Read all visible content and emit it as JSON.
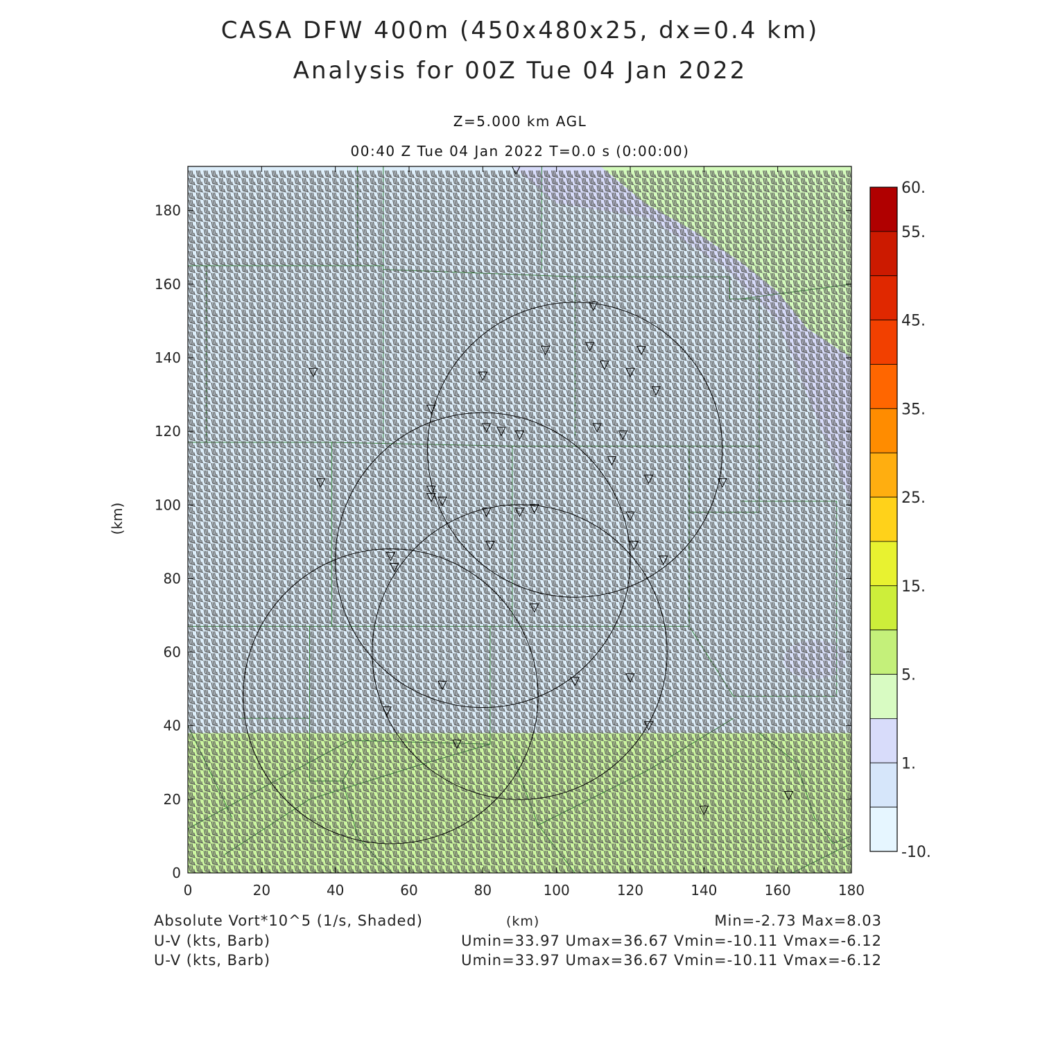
{
  "header": {
    "title_line1": "CASA DFW 400m (450x480x25, dx=0.4 km)",
    "title_line2": "Analysis for 00Z Tue 04 Jan 2022",
    "level": "Z=5.000 km AGL",
    "time": "00:40 Z Tue 04 Jan 2022    T=0.0 s (0:00:00)"
  },
  "axes": {
    "xlabel": "(km)",
    "ylabel": "(km)",
    "xticks": [
      "0",
      "20",
      "40",
      "60",
      "80",
      "100",
      "120",
      "140",
      "160",
      "180"
    ],
    "yticks": [
      "0",
      "20",
      "40",
      "60",
      "80",
      "100",
      "120",
      "140",
      "160",
      "180"
    ],
    "xrange_km": [
      0,
      180
    ],
    "yrange_km": [
      0,
      192
    ]
  },
  "colorbar": {
    "labels": [
      "60.",
      "55.",
      "45.",
      "35.",
      "25.",
      "15.",
      "5.",
      "1.",
      "-10."
    ],
    "colors": [
      "#b00000",
      "#cc1a00",
      "#e02800",
      "#f24000",
      "#ff6600",
      "#ff8c00",
      "#ffae10",
      "#ffd21a",
      "#e8f230",
      "#cdee3a",
      "#c4f07a",
      "#d8fbc2",
      "#d8dcfa",
      "#d6e6fa",
      "#e6f6ff"
    ]
  },
  "footer": {
    "field": "Absolute Vort*10^5 (1/s, Shaded)",
    "units": "(km)",
    "minmax": "Min=-2.73 Max=8.03",
    "barb1_label": "U-V (kts, Barb)",
    "barb1_stats": "Umin=33.97 Umax=36.67 Vmin=-10.11 Vmax=-6.12",
    "barb2_label": "U-V (kts, Barb)",
    "barb2_stats": "Umin=33.97 Umax=36.67 Vmin=-10.11 Vmax=-6.12"
  },
  "map": {
    "shading_colors": {
      "light_blue": "#ddeefa",
      "lavender": "#d8dcfa",
      "light_green": "#d4fbbc",
      "yellow_green": "#ccf6a0"
    },
    "boundary_color": "#2e7d32",
    "radar_circles_km": [
      {
        "cx": 105,
        "cy": 115,
        "r": 40
      },
      {
        "cx": 80,
        "cy": 85,
        "r": 40
      },
      {
        "cx": 90,
        "cy": 60,
        "r": 40
      },
      {
        "cx": 55,
        "cy": 48,
        "r": 40
      }
    ],
    "station_markers_km": [
      [
        89,
        191
      ],
      [
        34,
        136
      ],
      [
        66,
        126
      ],
      [
        80,
        135
      ],
      [
        97,
        142
      ],
      [
        110,
        154
      ],
      [
        109,
        143
      ],
      [
        123,
        142
      ],
      [
        113,
        138
      ],
      [
        120,
        136
      ],
      [
        127,
        131
      ],
      [
        111,
        121
      ],
      [
        81,
        121
      ],
      [
        85,
        120
      ],
      [
        90,
        119
      ],
      [
        118,
        119
      ],
      [
        36,
        106
      ],
      [
        66,
        104
      ],
      [
        66,
        102
      ],
      [
        69,
        101
      ],
      [
        115,
        112
      ],
      [
        125,
        107
      ],
      [
        145,
        106
      ],
      [
        81,
        98
      ],
      [
        90,
        98
      ],
      [
        94,
        99
      ],
      [
        120,
        97
      ],
      [
        82,
        89
      ],
      [
        121,
        89
      ],
      [
        55,
        86
      ],
      [
        56,
        83
      ],
      [
        129,
        85
      ],
      [
        94,
        72
      ],
      [
        69,
        51
      ],
      [
        105,
        52
      ],
      [
        120,
        53
      ],
      [
        54,
        44
      ],
      [
        125,
        40
      ],
      [
        73,
        35
      ],
      [
        140,
        17
      ],
      [
        163,
        21
      ]
    ]
  }
}
